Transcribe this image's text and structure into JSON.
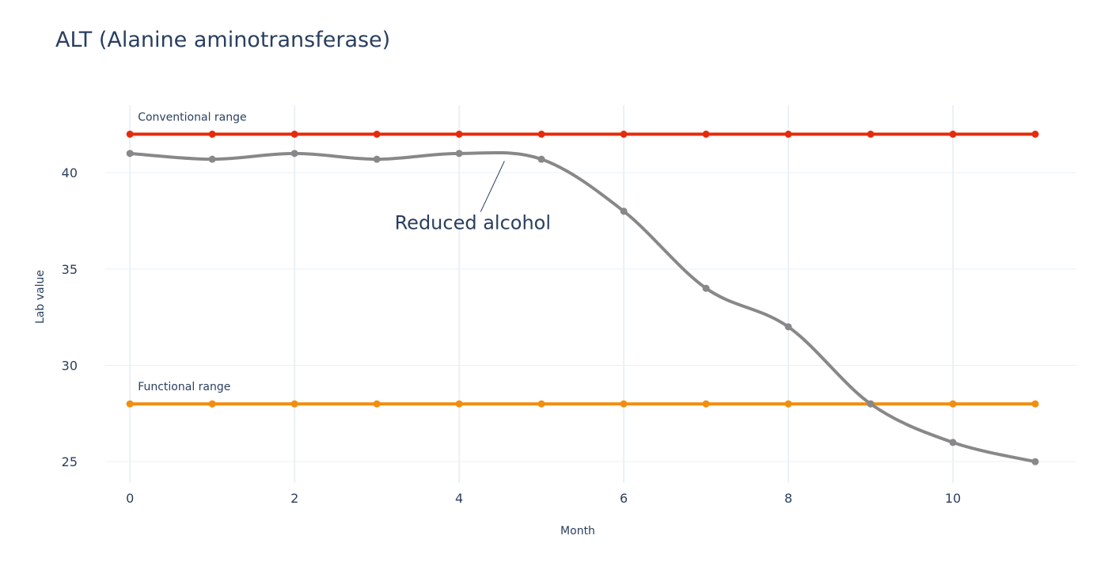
{
  "chart_data": {
    "type": "line",
    "title": "ALT (Alanine aminotransferase)",
    "xlabel": "Month",
    "ylabel": "Lab value",
    "x": [
      0,
      1,
      2,
      3,
      4,
      5,
      6,
      7,
      8,
      9,
      10,
      11
    ],
    "xlim": [
      -0.3,
      11.5
    ],
    "ylim": [
      23.9,
      43.5
    ],
    "x_ticks": [
      0,
      2,
      4,
      6,
      8,
      10
    ],
    "y_ticks": [
      25,
      30,
      35,
      40
    ],
    "grid": true,
    "series": [
      {
        "key": "conventional",
        "values": [
          42,
          42,
          42,
          42,
          42,
          42,
          42,
          42,
          42,
          42,
          42,
          42
        ],
        "color": "#e52b0b",
        "label": "Conventional range",
        "smooth": false
      },
      {
        "key": "functional",
        "values": [
          28,
          28,
          28,
          28,
          28,
          28,
          28,
          28,
          28,
          28,
          28,
          28
        ],
        "color": "#f28d0f",
        "label": "Functional range",
        "smooth": false
      },
      {
        "key": "lab",
        "values": [
          41,
          40.7,
          41,
          40.7,
          41,
          40.7,
          38,
          34,
          32,
          28,
          26,
          25
        ],
        "color": "#888888",
        "label": "",
        "smooth": true
      }
    ],
    "annotations": [
      {
        "text": "Reduced alcohol",
        "x": 4.55,
        "y": 40.6
      }
    ]
  }
}
